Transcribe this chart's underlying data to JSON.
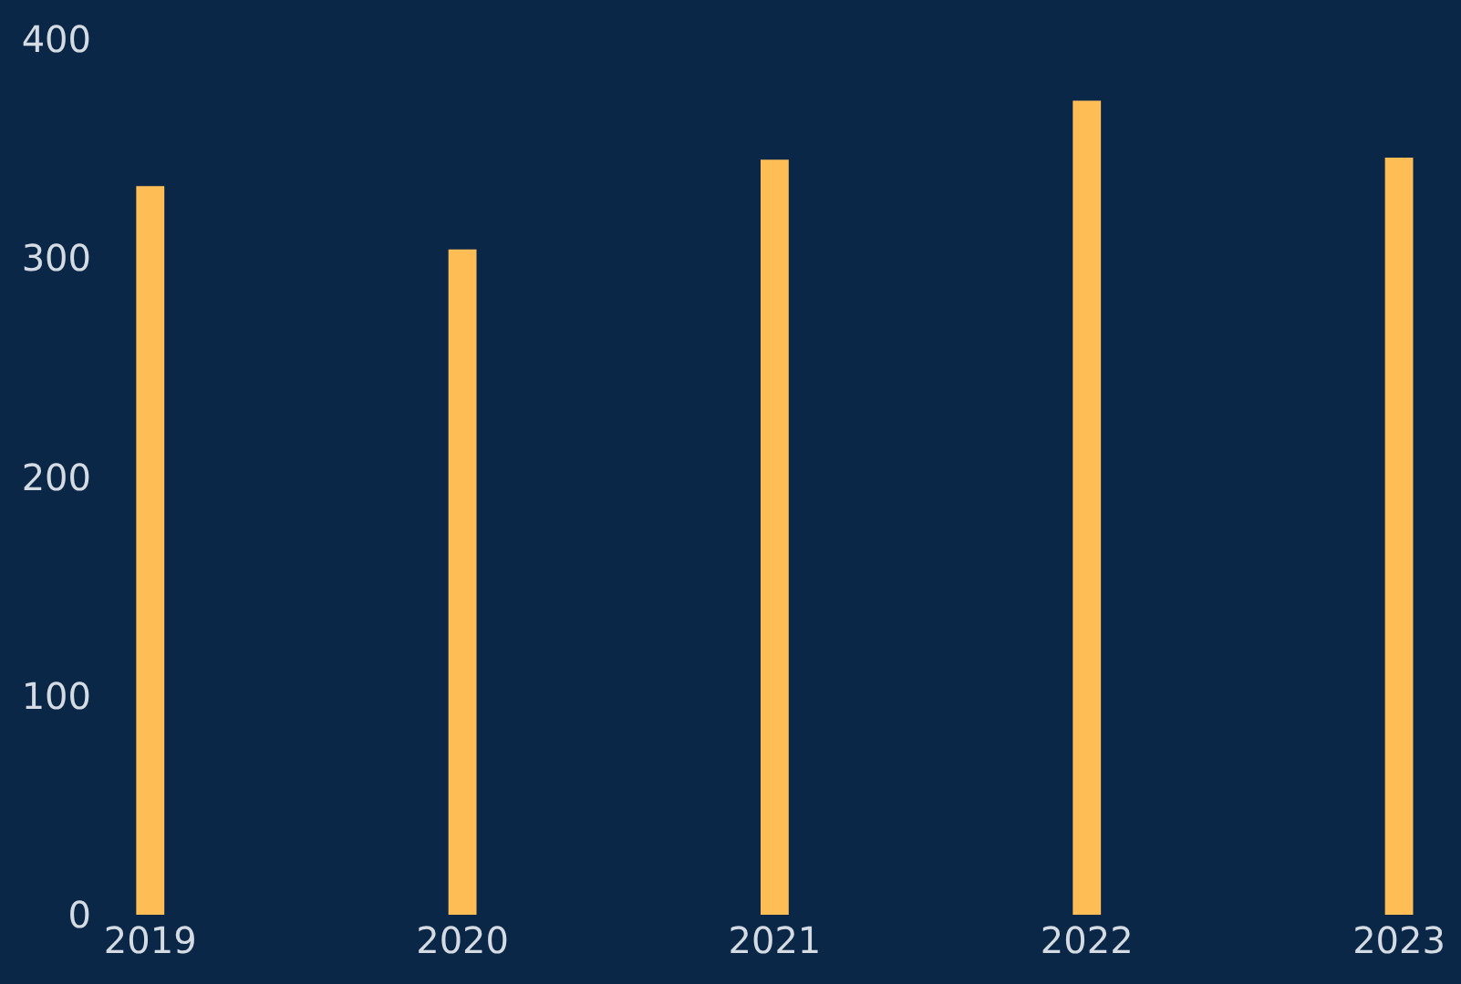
{
  "chart_data": {
    "type": "bar",
    "categories": [
      "2019",
      "2020",
      "2021",
      "2022",
      "2023"
    ],
    "values": [
      333,
      304,
      345,
      372,
      346
    ],
    "color": "#ffbe55",
    "ylim": [
      0,
      418
    ],
    "yticks": [
      0,
      100,
      200,
      300,
      400
    ],
    "grid": false
  }
}
